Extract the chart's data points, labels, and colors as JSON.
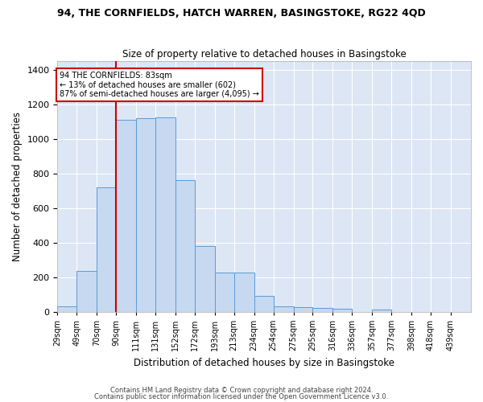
{
  "title": "94, THE CORNFIELDS, HATCH WARREN, BASINGSTOKE, RG22 4QD",
  "subtitle": "Size of property relative to detached houses in Basingstoke",
  "xlabel": "Distribution of detached houses by size in Basingstoke",
  "ylabel": "Number of detached properties",
  "bar_color": "#c6d9f0",
  "bar_edge_color": "#5b9bd5",
  "background_color": "#dce6f5",
  "grid_color": "#ffffff",
  "annotation_box_color": "#cc0000",
  "annotation_line_color": "#cc0000",
  "annotation_line1": "94 THE CORNFIELDS: 83sqm",
  "annotation_line2": "← 13% of detached houses are smaller (602)",
  "annotation_line3": "87% of semi-detached houses are larger (4,095) →",
  "red_line_bin": 3,
  "categories": [
    "29sqm",
    "49sqm",
    "70sqm",
    "90sqm",
    "111sqm",
    "131sqm",
    "152sqm",
    "172sqm",
    "193sqm",
    "213sqm",
    "234sqm",
    "254sqm",
    "275sqm",
    "295sqm",
    "316sqm",
    "336sqm",
    "357sqm",
    "377sqm",
    "398sqm",
    "418sqm",
    "439sqm"
  ],
  "bin_edges": [
    29,
    49,
    70,
    90,
    111,
    131,
    152,
    172,
    193,
    213,
    234,
    254,
    275,
    295,
    316,
    336,
    357,
    377,
    398,
    418,
    439,
    460
  ],
  "values": [
    30,
    235,
    720,
    1110,
    1120,
    1125,
    760,
    380,
    225,
    225,
    90,
    30,
    25,
    20,
    15,
    0,
    10,
    0,
    0,
    0,
    0
  ],
  "ylim": [
    0,
    1450
  ],
  "yticks": [
    0,
    200,
    400,
    600,
    800,
    1000,
    1200,
    1400
  ],
  "footer_line1": "Contains HM Land Registry data © Crown copyright and database right 2024.",
  "footer_line2": "Contains public sector information licensed under the Open Government Licence v3.0.",
  "figsize": [
    6.0,
    5.0
  ],
  "dpi": 100
}
